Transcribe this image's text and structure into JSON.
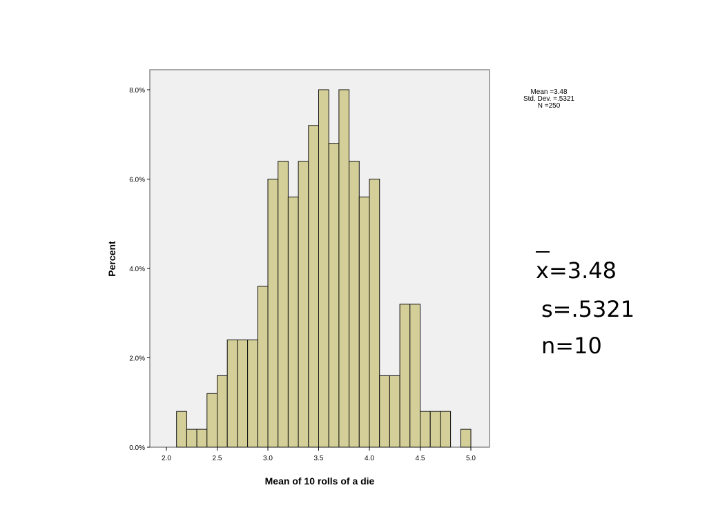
{
  "chart_data": {
    "type": "bar",
    "xlabel": "Mean of 10 rolls of a die",
    "ylabel": "Percent",
    "xlim": [
      1.8,
      5.15
    ],
    "ylim": [
      0,
      8.4
    ],
    "xticks": [
      "2.0",
      "2.5",
      "3.0",
      "3.5",
      "4.0",
      "4.5",
      "5.0"
    ],
    "xtick_values": [
      2.0,
      2.5,
      3.0,
      3.5,
      4.0,
      4.5,
      5.0
    ],
    "yticks": [
      "0.0%",
      "2.0%",
      "4.0%",
      "6.0%",
      "8.0%"
    ],
    "ytick_values": [
      0,
      2,
      4,
      6,
      8
    ],
    "bin_width": 0.1,
    "bin_starts": [
      2.1,
      2.2,
      2.3,
      2.4,
      2.5,
      2.6,
      2.7,
      2.8,
      2.9,
      3.0,
      3.1,
      3.2,
      3.3,
      3.4,
      3.5,
      3.6,
      3.7,
      3.8,
      3.9,
      4.0,
      4.1,
      4.2,
      4.3,
      4.4,
      4.5,
      4.6,
      4.7,
      4.8,
      4.9
    ],
    "values": [
      0.8,
      0.4,
      0.4,
      1.2,
      1.6,
      2.4,
      2.4,
      2.4,
      3.6,
      6.0,
      6.4,
      5.6,
      6.4,
      7.2,
      8.0,
      6.8,
      8.0,
      6.4,
      5.6,
      6.0,
      1.6,
      1.6,
      3.2,
      3.2,
      0.8,
      0.8,
      0.8,
      0,
      0.4
    ],
    "bar_color": "#d4cf98",
    "plot_background": "#f0f0f0",
    "grid": false
  },
  "stats_box": {
    "mean": "Mean =3.48",
    "sd": "Std. Dev. =.5321",
    "n": "N =250"
  },
  "annotation": {
    "xbar": "x=3.48",
    "s": "s=.5321",
    "n": "n=10"
  }
}
